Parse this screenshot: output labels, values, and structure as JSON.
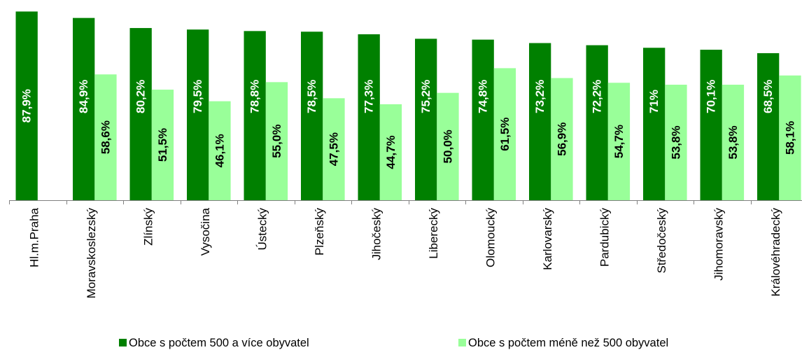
{
  "chart_data": {
    "type": "bar",
    "categories": [
      "Hl.m.Praha",
      "Moravskoslezský",
      "Zlínský",
      "Vysočina",
      "Ústecký",
      "Plzeňský",
      "Jihočeský",
      "Liberecký",
      "Olomoucký",
      "Karlovarský",
      "Pardubický",
      "Středočeský",
      "Jihomoravský",
      "Královéhradecký"
    ],
    "series": [
      {
        "name": "Obce s počtem 500 a více obyvatel",
        "color": "#008000",
        "values": [
          87.9,
          84.9,
          80.2,
          79.5,
          78.8,
          78.5,
          77.3,
          75.2,
          74.8,
          73.2,
          72.2,
          71,
          70.1,
          68.5
        ],
        "labels": [
          "87,9%",
          "84,9%",
          "80,2%",
          "79,5%",
          "78,8%",
          "78,5%",
          "77,3%",
          "75,2%",
          "74,8%",
          "73,2%",
          "72,2%",
          "71%",
          "70,1%",
          "68,5%"
        ]
      },
      {
        "name": "Obce s počtem méně než 500 obyvatel",
        "color": "#99FF99",
        "values": [
          null,
          58.6,
          51.5,
          46.1,
          55.0,
          47.5,
          44.7,
          50.0,
          61.5,
          56.9,
          54.7,
          53.8,
          53.8,
          58.1
        ],
        "labels": [
          null,
          "58,6%",
          "51,5%",
          "46,1%",
          "55,0%",
          "47,5%",
          "44,7%",
          "50,0%",
          "61,5%",
          "56,9%",
          "54,7%",
          "53,8%",
          "53,8%",
          "58,1%"
        ]
      }
    ],
    "ylim": [
      0,
      90
    ],
    "grid": false,
    "legend": "bottom",
    "axis_color": "#808080"
  }
}
